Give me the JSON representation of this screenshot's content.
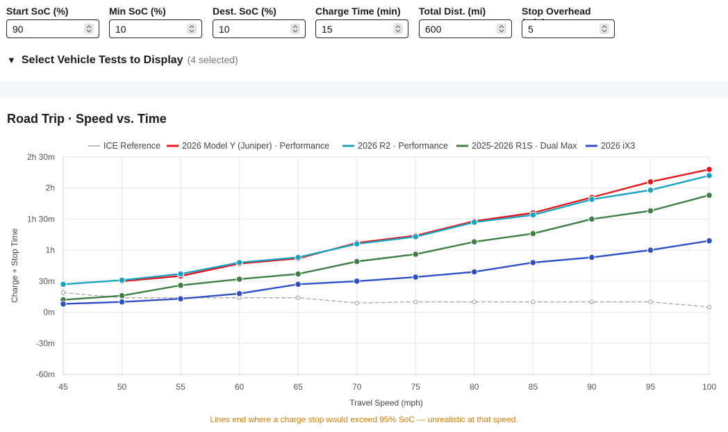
{
  "controls": {
    "fields": [
      {
        "label": "Start SoC (%)",
        "value": "90"
      },
      {
        "label": "Min SoC (%)",
        "value": "10"
      },
      {
        "label": "Dest. SoC (%)",
        "value": "10"
      },
      {
        "label": "Charge Time (min)",
        "value": "15"
      },
      {
        "label": "Total Dist. (mi)",
        "value": "600"
      },
      {
        "label": "Stop Overhead (min)",
        "value": "5"
      }
    ],
    "vehicle_toggle": {
      "label": "Select Vehicle Tests to Display",
      "count": "(4 selected)"
    }
  },
  "chart_title": "Road Trip · Speed vs. Time",
  "footnote": "Lines end where a charge stop would exceed 95% SoC — unrealistic at that speed.",
  "chart_data": {
    "type": "line",
    "xlabel": "Travel Speed (mph)",
    "ylabel": "Charge + Stop Time",
    "x": [
      45,
      50,
      55,
      60,
      65,
      70,
      75,
      80,
      85,
      90,
      95,
      100
    ],
    "xlim": [
      45,
      100
    ],
    "ylim": [
      -60,
      150
    ],
    "y_unit": "minutes",
    "y_ticks": [
      {
        "value": 150,
        "label": "2h 30m"
      },
      {
        "value": 120,
        "label": "2h"
      },
      {
        "value": 90,
        "label": "1h 30m"
      },
      {
        "value": 60,
        "label": "1h"
      },
      {
        "value": 30,
        "label": "30m"
      },
      {
        "value": 0,
        "label": "0m"
      },
      {
        "value": -30,
        "label": "-30m"
      },
      {
        "value": -60,
        "label": "-60m"
      }
    ],
    "x_ticks": [
      "45",
      "50",
      "55",
      "60",
      "65",
      "70",
      "75",
      "80",
      "85",
      "90",
      "95",
      "100"
    ],
    "grid": true,
    "legend_position": "top-center",
    "series": [
      {
        "name": "ICE Reference",
        "color": "#a6a6a6",
        "dashed": true,
        "marker": "small",
        "values": [
          19,
          14,
          14,
          14,
          14,
          9,
          10,
          10,
          10,
          10,
          10,
          5
        ]
      },
      {
        "name": "2026 Model Y (Juniper) · Performance",
        "color": "#e8141c",
        "values": [
          null,
          30,
          35,
          47,
          52,
          67,
          74,
          88,
          96,
          111,
          126,
          138
        ]
      },
      {
        "name": "2026 R2 · Performance",
        "color": "#19a3bf",
        "values": [
          27,
          31,
          37,
          48,
          53,
          66,
          73,
          87,
          94,
          109,
          118,
          132
        ]
      },
      {
        "name": "2025-2026 R1S · Dual Max",
        "color": "#3e7d46",
        "values": [
          12,
          16,
          26,
          32,
          37,
          49,
          56,
          68,
          76,
          90,
          98,
          113
        ]
      },
      {
        "name": "2026 iX3",
        "color": "#2f4fc8",
        "values": [
          8,
          10,
          13,
          18,
          27,
          30,
          34,
          39,
          48,
          53,
          60,
          69
        ]
      }
    ]
  }
}
